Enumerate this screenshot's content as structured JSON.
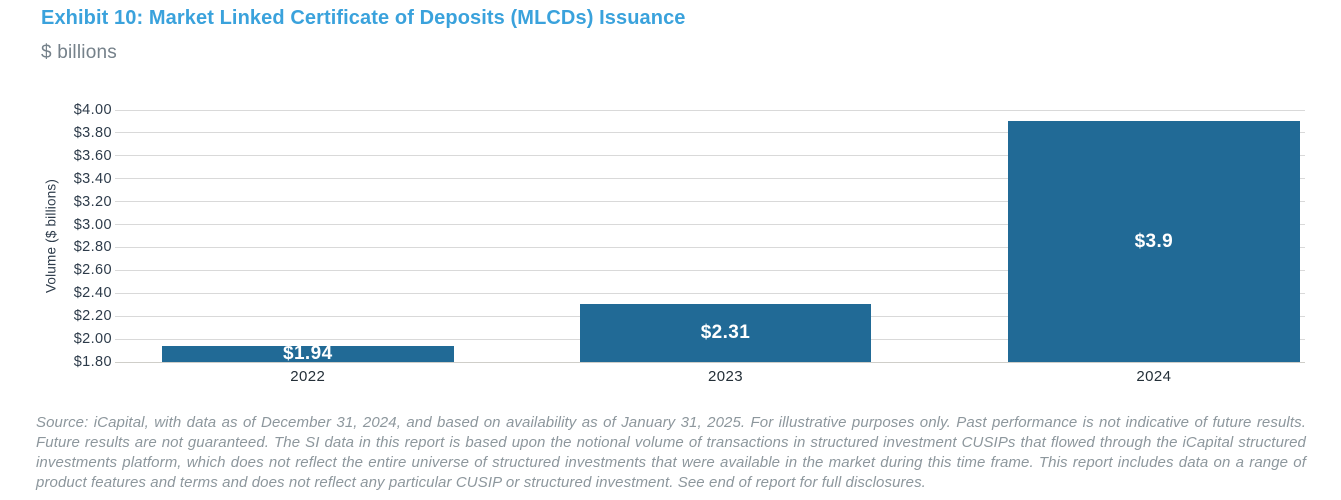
{
  "header": {
    "title": "Exhibit 10: Market Linked Certificate of Deposits (MLCDs) Issuance",
    "subtitle": "$ billions"
  },
  "chart_data": {
    "type": "bar",
    "title": "Exhibit 10: Market Linked Certificate of Deposits (MLCDs) Issuance",
    "subtitle": "$ billions",
    "categories": [
      "2022",
      "2023",
      "2024"
    ],
    "values": [
      1.94,
      2.31,
      3.9
    ],
    "value_labels": [
      "$1.94",
      "$2.31",
      "$3.9"
    ],
    "xlabel": "",
    "ylabel": "Volume ($ billions)",
    "ylim": [
      1.8,
      4.0
    ],
    "yticks": [
      1.8,
      2.0,
      2.2,
      2.4,
      2.6,
      2.8,
      3.0,
      3.2,
      3.4,
      3.6,
      3.8,
      4.0
    ],
    "ytick_labels": [
      "$1.80",
      "$2.00",
      "$2.20",
      "$2.40",
      "$2.60",
      "$2.80",
      "$3.00",
      "$3.20",
      "$3.40",
      "$3.60",
      "$3.80",
      "$4.00"
    ],
    "grid": "horizontal",
    "legend": "none",
    "bar_color": "#216a96",
    "bar_center_fractions": [
      0.162,
      0.513,
      0.873
    ],
    "bar_width_fraction": 0.245
  },
  "footer": {
    "source_note": "Source: iCapital, with data as of December 31, 2024, and based on availability as of January 31, 2025. For illustrative purposes only. Past performance is not indicative of future results. Future results are not guaranteed. The SI data in this report is based upon the notional volume of transactions in structured investment CUSIPs that flowed through the iCapital structured investments platform, which does not reflect the entire universe of structured investments that were available in the market during this time frame. This report includes data on a range of product features and terms and does not reflect any particular CUSIP or structured investment. See end of report for full disclosures."
  },
  "colors": {
    "title_blue": "#3aa2dc",
    "subtitle_gray": "#75818a",
    "axis_text": "#2d3b4a",
    "x_label_text": "#242f38",
    "gridline": "#d9d9d9",
    "bar": "#216a96",
    "bar_value_text": "#ffffff",
    "footer_gray": "#8d979d",
    "background": "#ffffff"
  }
}
